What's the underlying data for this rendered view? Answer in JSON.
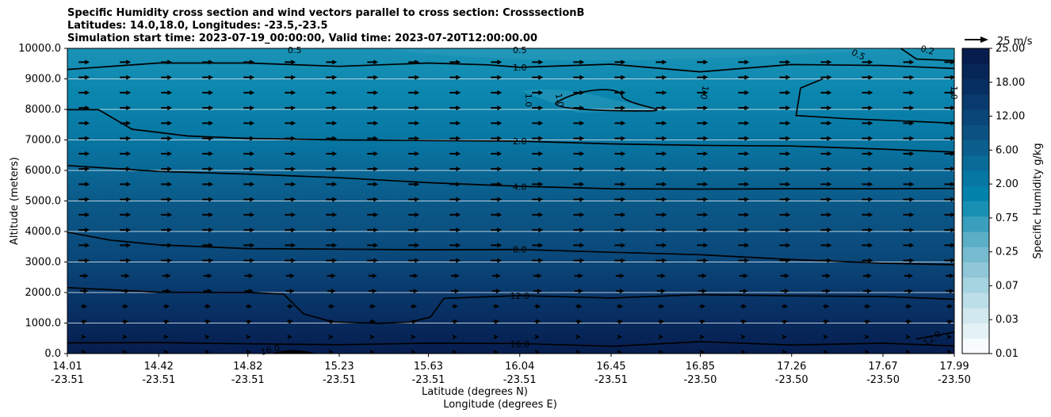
{
  "chart_data": {
    "type": "heatmap",
    "title_lines": [
      "Specific Humidity cross section and wind vectors parallel to cross section: CrosssectionB",
      "Latitudes: 14.0,18.0, Longitudes: -23.5,-23.5",
      "Simulation start time: 2023-07-19_00:00:00, Valid time: 2023-07-20T12:00:00.00"
    ],
    "ylabel": "Altitude (meters)",
    "xlabel_lat": "Latitude (degrees N)",
    "xlabel_lon": "Longitude (degrees E)",
    "ylim": [
      0,
      10000
    ],
    "yticks": [
      "0.0",
      "1000.0",
      "2000.0",
      "3000.0",
      "4000.0",
      "5000.0",
      "6000.0",
      "7000.0",
      "8000.0",
      "9000.0",
      "10000.0"
    ],
    "xticks_lat": [
      "14.01",
      "14.42",
      "14.82",
      "15.23",
      "15.63",
      "16.04",
      "16.45",
      "16.85",
      "17.26",
      "17.67",
      "17.99"
    ],
    "xticks_lon": [
      "-23.51",
      "-23.51",
      "-23.51",
      "-23.51",
      "-23.51",
      "-23.51",
      "-23.51",
      "-23.50",
      "-23.50",
      "-23.50",
      "-23.50"
    ],
    "grid": "horizontal",
    "colorbar": {
      "label": "Specific Humidity g/kg",
      "ticks": [
        "0.01",
        "0.03",
        "0.07",
        "0.25",
        "0.75",
        "2.00",
        "6.00",
        "12.00",
        "18.00",
        "25.00"
      ],
      "colors": [
        "#f7fbfd",
        "#e4f1f5",
        "#d0e8ee",
        "#bcdee8",
        "#a6d3e0",
        "#8fc7d8",
        "#76bbcf",
        "#5aaec6",
        "#3a9fbd",
        "#1890b4",
        "#0383ac",
        "#0676a3",
        "#0a6a98",
        "#0b5e8d",
        "#0b5282",
        "#0a4678",
        "#093a6d",
        "#082f62",
        "#072658",
        "#061d4e"
      ]
    },
    "quiver_key": "25 m/s",
    "contour_labels": [
      {
        "text": "0.5",
        "lat": 15.03,
        "alt": 9950,
        "rot": 0
      },
      {
        "text": "0.5",
        "lat": 16.04,
        "alt": 9950,
        "rot": 0
      },
      {
        "text": "0.5",
        "lat": 17.56,
        "alt": 9800,
        "rot": 25
      },
      {
        "text": "0.2",
        "lat": 17.87,
        "alt": 9950,
        "rot": 15
      },
      {
        "text": "1.0",
        "lat": 16.04,
        "alt": 9380,
        "rot": 0
      },
      {
        "text": "1.0",
        "lat": 16.08,
        "alt": 8300,
        "rot": 90
      },
      {
        "text": "1.0",
        "lat": 16.22,
        "alt": 8300,
        "rot": 80
      },
      {
        "text": "1.0",
        "lat": 16.87,
        "alt": 8550,
        "rot": 100
      },
      {
        "text": "1.0",
        "lat": 17.99,
        "alt": 8550,
        "rot": 90
      },
      {
        "text": "2.0",
        "lat": 16.04,
        "alt": 6960,
        "rot": 0
      },
      {
        "text": "4.0",
        "lat": 16.04,
        "alt": 5470,
        "rot": 0
      },
      {
        "text": "8.0",
        "lat": 16.04,
        "alt": 3410,
        "rot": 0
      },
      {
        "text": "12.0",
        "lat": 16.04,
        "alt": 1900,
        "rot": 0
      },
      {
        "text": "16.0",
        "lat": 16.04,
        "alt": 310,
        "rot": 0
      },
      {
        "text": "16.0",
        "lat": 14.92,
        "alt": 130,
        "rot": -15
      },
      {
        "text": "12.0",
        "lat": 17.89,
        "alt": 500,
        "rot": -35
      }
    ],
    "contours": [
      {
        "level": "1.0",
        "points": [
          [
            14.01,
            9310
          ],
          [
            14.42,
            9520
          ],
          [
            14.82,
            9520
          ],
          [
            15.23,
            9410
          ],
          [
            15.63,
            9520
          ],
          [
            15.9,
            9460
          ],
          [
            16.04,
            9380
          ],
          [
            16.45,
            9480
          ],
          [
            16.85,
            9230
          ],
          [
            17.26,
            9470
          ],
          [
            17.67,
            9440
          ],
          [
            17.99,
            9340
          ]
        ]
      },
      {
        "level": "2.0",
        "points": [
          [
            14.01,
            7990
          ],
          [
            14.15,
            7990
          ],
          [
            14.3,
            7350
          ],
          [
            14.55,
            7130
          ],
          [
            14.82,
            7050
          ],
          [
            15.23,
            7000
          ],
          [
            15.63,
            6980
          ],
          [
            16.04,
            6960
          ],
          [
            16.45,
            6870
          ],
          [
            16.85,
            6820
          ],
          [
            17.26,
            6800
          ],
          [
            17.67,
            6700
          ],
          [
            17.99,
            6600
          ]
        ]
      },
      {
        "level": "4.0",
        "points": [
          [
            14.01,
            6160
          ],
          [
            14.42,
            5970
          ],
          [
            14.82,
            5880
          ],
          [
            15.23,
            5760
          ],
          [
            15.63,
            5600
          ],
          [
            16.04,
            5480
          ],
          [
            16.45,
            5400
          ],
          [
            16.85,
            5390
          ],
          [
            17.26,
            5400
          ],
          [
            17.67,
            5400
          ],
          [
            17.99,
            5410
          ]
        ]
      },
      {
        "level": "8.0",
        "points": [
          [
            14.01,
            3980
          ],
          [
            14.2,
            3720
          ],
          [
            14.42,
            3560
          ],
          [
            14.82,
            3440
          ],
          [
            15.23,
            3420
          ],
          [
            15.63,
            3400
          ],
          [
            16.04,
            3410
          ],
          [
            16.45,
            3320
          ],
          [
            16.85,
            3240
          ],
          [
            17.26,
            3080
          ],
          [
            17.67,
            2960
          ],
          [
            17.99,
            2910
          ]
        ]
      },
      {
        "level": "12.0",
        "points": [
          [
            14.01,
            2160
          ],
          [
            14.42,
            2010
          ],
          [
            14.82,
            2000
          ],
          [
            14.98,
            1950
          ],
          [
            15.07,
            1300
          ],
          [
            15.2,
            1040
          ],
          [
            15.4,
            990
          ],
          [
            15.55,
            1030
          ],
          [
            15.64,
            1200
          ],
          [
            15.7,
            1810
          ],
          [
            16.04,
            1900
          ],
          [
            16.45,
            1820
          ],
          [
            16.85,
            1930
          ],
          [
            17.26,
            1890
          ],
          [
            17.67,
            1870
          ],
          [
            17.99,
            1780
          ]
        ]
      },
      {
        "level": "16.0",
        "points": [
          [
            14.01,
            350
          ],
          [
            14.42,
            360
          ],
          [
            14.82,
            320
          ],
          [
            15.23,
            290
          ],
          [
            15.63,
            340
          ],
          [
            16.04,
            330
          ],
          [
            16.45,
            240
          ],
          [
            16.85,
            390
          ],
          [
            17.26,
            280
          ],
          [
            17.67,
            340
          ],
          [
            17.99,
            250
          ]
        ]
      }
    ]
  }
}
